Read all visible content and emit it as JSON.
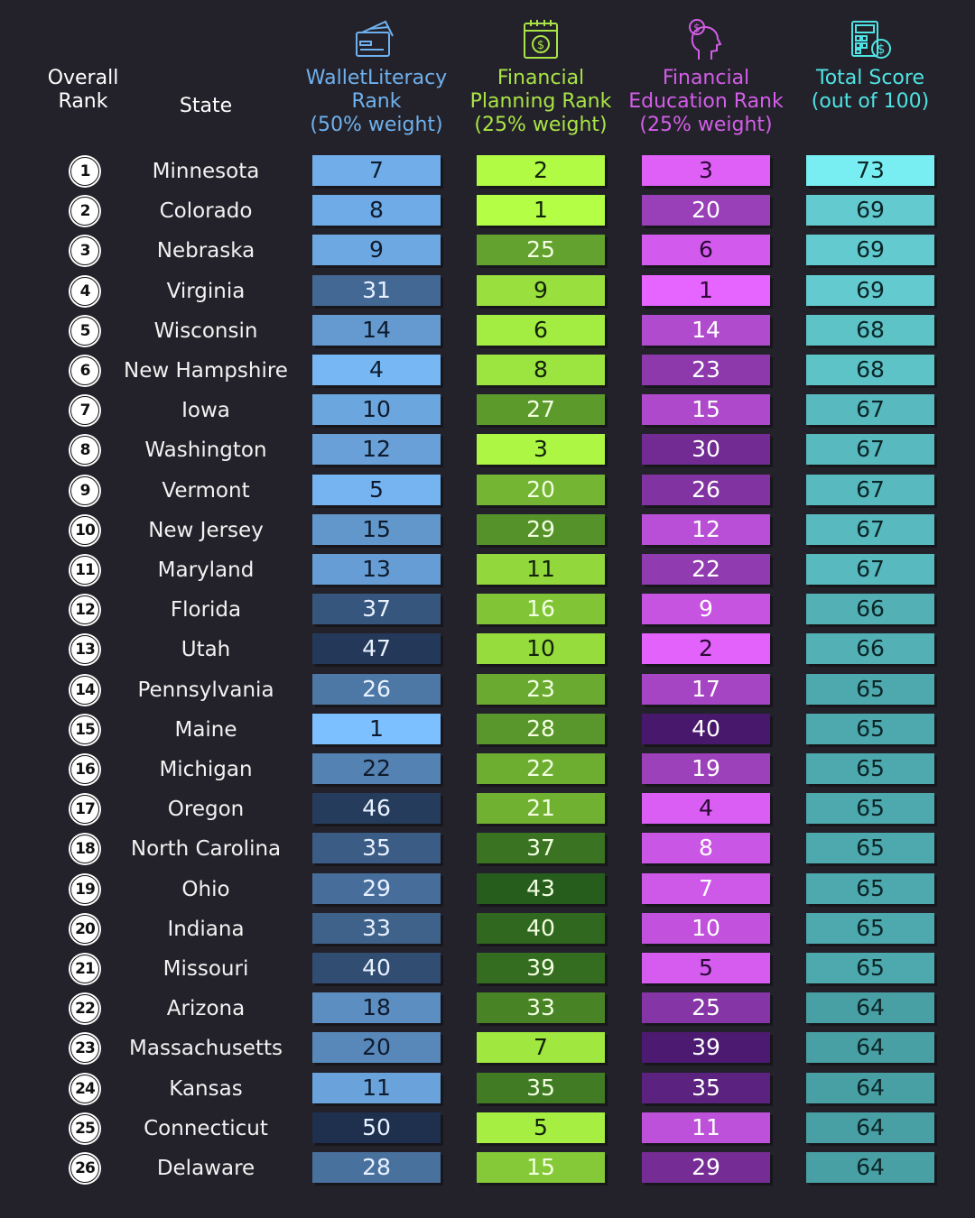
{
  "headers": {
    "overall_rank": [
      "Overall",
      "Rank"
    ],
    "state": "State",
    "wallet": [
      "WalletLiteracy",
      "Rank",
      "(50% weight)"
    ],
    "planning": [
      "Financial",
      "Planning Rank",
      "(25% weight)"
    ],
    "education": [
      "Financial",
      "Education Rank",
      "(25% weight)"
    ],
    "total": [
      "Total Score",
      "(out of 100)"
    ]
  },
  "icons": {
    "wallet": "wallet-card-icon",
    "planning": "calendar-dollar-icon",
    "education": "head-dollar-icon",
    "total": "calculator-dollar-icon"
  },
  "colors": {
    "background": "#23222a",
    "wallet_header": "#6fb1ee",
    "planning_header": "#a9e446",
    "education_header": "#d35ee8",
    "total_header": "#4fe3e3"
  },
  "chart_data": {
    "type": "table",
    "columns": [
      "Overall Rank",
      "State",
      "WalletLiteracy Rank (50% weight)",
      "Financial Planning Rank (25% weight)",
      "Financial Education Rank (25% weight)",
      "Total Score (out of 100)"
    ],
    "rows": [
      {
        "rank": "1",
        "state": "Minnesota",
        "wallet": 7,
        "planning": 2,
        "education": 3,
        "total": 73
      },
      {
        "rank": "2",
        "state": "Colorado",
        "wallet": 8,
        "planning": 1,
        "education": 20,
        "total": 69
      },
      {
        "rank": "3",
        "state": "Nebraska",
        "wallet": 9,
        "planning": 25,
        "education": 6,
        "total": 69
      },
      {
        "rank": "4",
        "state": "Virginia",
        "wallet": 31,
        "planning": 9,
        "education": 1,
        "total": 69
      },
      {
        "rank": "5",
        "state": "Wisconsin",
        "wallet": 14,
        "planning": 6,
        "education": 14,
        "total": 68
      },
      {
        "rank": "6",
        "state": "New Hampshire",
        "wallet": 4,
        "planning": 8,
        "education": 23,
        "total": 68
      },
      {
        "rank": "7",
        "state": "Iowa",
        "wallet": 10,
        "planning": 27,
        "education": 15,
        "total": 67
      },
      {
        "rank": "8",
        "state": "Washington",
        "wallet": 12,
        "planning": 3,
        "education": 30,
        "total": 67
      },
      {
        "rank": "9",
        "state": "Vermont",
        "wallet": 5,
        "planning": 20,
        "education": 26,
        "total": 67
      },
      {
        "rank": "10",
        "state": "New Jersey",
        "wallet": 15,
        "planning": 29,
        "education": 12,
        "total": 67
      },
      {
        "rank": "11",
        "state": "Maryland",
        "wallet": 13,
        "planning": 11,
        "education": 22,
        "total": 67
      },
      {
        "rank": "12",
        "state": "Florida",
        "wallet": 37,
        "planning": 16,
        "education": 9,
        "total": 66
      },
      {
        "rank": "13",
        "state": "Utah",
        "wallet": 47,
        "planning": 10,
        "education": 2,
        "total": 66
      },
      {
        "rank": "14",
        "state": "Pennsylvania",
        "wallet": 26,
        "planning": 23,
        "education": 17,
        "total": 65
      },
      {
        "rank": "15",
        "state": "Maine",
        "wallet": 1,
        "planning": 28,
        "education": 40,
        "total": 65
      },
      {
        "rank": "16",
        "state": "Michigan",
        "wallet": 22,
        "planning": 22,
        "education": 19,
        "total": 65
      },
      {
        "rank": "17",
        "state": "Oregon",
        "wallet": 46,
        "planning": 21,
        "education": 4,
        "total": 65
      },
      {
        "rank": "18",
        "state": "North Carolina",
        "wallet": 35,
        "planning": 37,
        "education": 8,
        "total": 65
      },
      {
        "rank": "19",
        "state": "Ohio",
        "wallet": 29,
        "planning": 43,
        "education": 7,
        "total": 65
      },
      {
        "rank": "20",
        "state": "Indiana",
        "wallet": 33,
        "planning": 40,
        "education": 10,
        "total": 65
      },
      {
        "rank": "21",
        "state": "Missouri",
        "wallet": 40,
        "planning": 39,
        "education": 5,
        "total": 65
      },
      {
        "rank": "22",
        "state": "Arizona",
        "wallet": 18,
        "planning": 33,
        "education": 25,
        "total": 64
      },
      {
        "rank": "23",
        "state": "Massachusetts",
        "wallet": 20,
        "planning": 7,
        "education": 39,
        "total": 64
      },
      {
        "rank": "24",
        "state": "Kansas",
        "wallet": 11,
        "planning": 35,
        "education": 35,
        "total": 64
      },
      {
        "rank": "25",
        "state": "Connecticut",
        "wallet": 50,
        "planning": 5,
        "education": 11,
        "total": 64
      },
      {
        "rank": "26",
        "state": "Delaware",
        "wallet": 28,
        "planning": 15,
        "education": 29,
        "total": 64
      }
    ]
  }
}
